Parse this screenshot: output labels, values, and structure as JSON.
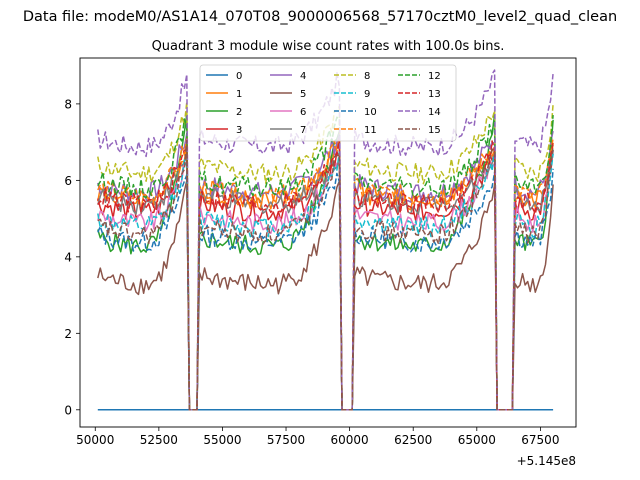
{
  "chart_data": {
    "type": "line",
    "suptitle": "Data file: modeM0/AS1A14_070T08_9000006568_57170cztM0_level2_quad_clean",
    "title": "Quadrant 3 module wise count rates with 100.0s bins.",
    "xlabel": "",
    "ylabel": "",
    "xlim": [
      49400,
      68900
    ],
    "ylim": [
      -0.45,
      9.2
    ],
    "x_offset_label": "+5.145e8",
    "x_ticks": [
      50000,
      52500,
      55000,
      57500,
      60000,
      62500,
      65000,
      67500
    ],
    "x_tick_labels": [
      "50000",
      "52500",
      "55000",
      "57500",
      "60000",
      "62500",
      "65000",
      "67500"
    ],
    "y_ticks": [
      0,
      2,
      4,
      6,
      8
    ],
    "y_tick_labels": [
      "0",
      "2",
      "4",
      "6",
      "8"
    ],
    "legend_position": "upper-center",
    "shape": {
      "x_start": 50100,
      "x_end": 68000,
      "step": 100,
      "gaps": [
        [
          53700,
          54000
        ],
        [
          59700,
          60100
        ],
        [
          65800,
          66400
        ]
      ],
      "segments": [
        [
          50100,
          53600
        ],
        [
          54100,
          59600
        ],
        [
          60200,
          65700
        ],
        [
          66500,
          68000
        ]
      ]
    },
    "series": [
      {
        "name": "0",
        "color": "#1f77b4",
        "dash": "solid",
        "base": 0.0,
        "peak": 0.0
      },
      {
        "name": "1",
        "color": "#ff7f0e",
        "dash": "solid",
        "base": 5.7,
        "peak": 6.9
      },
      {
        "name": "2",
        "color": "#2ca02c",
        "dash": "solid",
        "base": 4.5,
        "peak": 7.5
      },
      {
        "name": "3",
        "color": "#d62728",
        "dash": "solid",
        "base": 5.4,
        "peak": 6.7
      },
      {
        "name": "4",
        "color": "#9467bd",
        "dash": "solid",
        "base": 5.9,
        "peak": 7.2
      },
      {
        "name": "5",
        "color": "#8c564b",
        "dash": "solid",
        "base": 3.5,
        "peak": 5.8
      },
      {
        "name": "6",
        "color": "#e377c2",
        "dash": "solid",
        "base": 5.1,
        "peak": 6.6
      },
      {
        "name": "7",
        "color": "#7f7f7f",
        "dash": "solid",
        "base": 5.6,
        "peak": 6.7
      },
      {
        "name": "8",
        "color": "#bcbd22",
        "dash": "dashed",
        "base": 6.4,
        "peak": 7.9
      },
      {
        "name": "9",
        "color": "#17becf",
        "dash": "dashed",
        "base": 5.0,
        "peak": 6.6
      },
      {
        "name": "10",
        "color": "#1f77b4",
        "dash": "dashed",
        "base": 4.6,
        "peak": 6.2
      },
      {
        "name": "11",
        "color": "#ff7f0e",
        "dash": "dashed",
        "base": 5.8,
        "peak": 7.0
      },
      {
        "name": "12",
        "color": "#2ca02c",
        "dash": "dashed",
        "base": 6.0,
        "peak": 7.6
      },
      {
        "name": "13",
        "color": "#d62728",
        "dash": "dashed",
        "base": 5.6,
        "peak": 6.9
      },
      {
        "name": "14",
        "color": "#9467bd",
        "dash": "dashed",
        "base": 7.1,
        "peak": 8.7
      },
      {
        "name": "15",
        "color": "#8c564b",
        "dash": "dashed",
        "base": 4.8,
        "peak": 6.8
      }
    ]
  }
}
